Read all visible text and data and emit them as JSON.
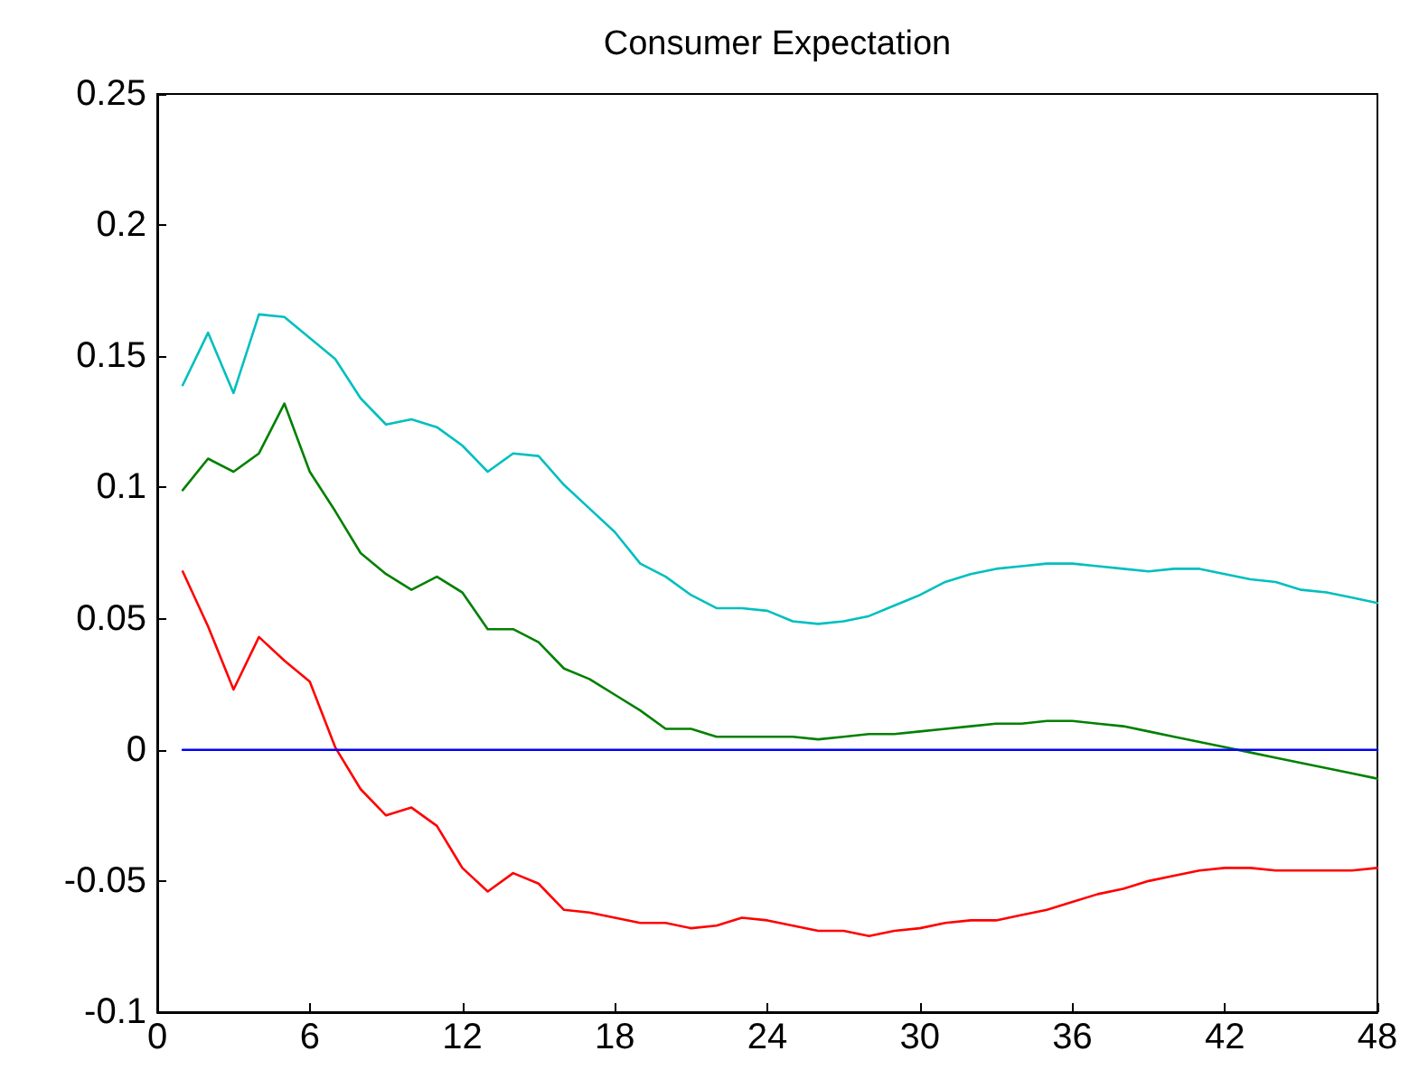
{
  "chart_data": {
    "type": "line",
    "title": "Consumer Expectation",
    "x": [
      1,
      2,
      3,
      4,
      5,
      6,
      7,
      8,
      9,
      10,
      11,
      12,
      13,
      14,
      15,
      16,
      17,
      18,
      19,
      20,
      21,
      22,
      23,
      24,
      25,
      26,
      27,
      28,
      29,
      30,
      31,
      32,
      33,
      34,
      35,
      36,
      37,
      38,
      39,
      40,
      41,
      42,
      43,
      44,
      45,
      46,
      47,
      48
    ],
    "xlim": [
      0,
      48
    ],
    "xticks": [
      0,
      6,
      12,
      18,
      24,
      30,
      36,
      42,
      48
    ],
    "ylim": [
      -0.1,
      0.25
    ],
    "yticks": [
      -0.1,
      -0.05,
      0,
      0.05,
      0.1,
      0.15,
      0.2,
      0.25
    ],
    "grid": false,
    "marker": "none",
    "line_style": "solid",
    "series": [
      {
        "color": "#00bfbf",
        "values": [
          0.139,
          0.159,
          0.136,
          0.166,
          0.165,
          0.157,
          0.149,
          0.134,
          0.124,
          0.126,
          0.123,
          0.116,
          0.106,
          0.113,
          0.112,
          0.101,
          0.092,
          0.083,
          0.071,
          0.066,
          0.059,
          0.054,
          0.054,
          0.053,
          0.049,
          0.048,
          0.049,
          0.051,
          0.055,
          0.059,
          0.064,
          0.067,
          0.069,
          0.07,
          0.071,
          0.071,
          0.07,
          0.069,
          0.068,
          0.069,
          0.069,
          0.067,
          0.065,
          0.064,
          0.061,
          0.06,
          0.058,
          0.056
        ]
      },
      {
        "color": "#008000",
        "values": [
          0.099,
          0.111,
          0.106,
          0.113,
          0.132,
          0.106,
          0.091,
          0.075,
          0.067,
          0.061,
          0.066,
          0.06,
          0.046,
          0.046,
          0.041,
          0.031,
          0.027,
          0.021,
          0.015,
          0.008,
          0.008,
          0.005,
          0.005,
          0.005,
          0.005,
          0.004,
          0.005,
          0.006,
          0.006,
          0.007,
          0.008,
          0.009,
          0.01,
          0.01,
          0.011,
          0.011,
          0.01,
          0.009,
          0.007,
          0.005,
          0.003,
          0.001,
          -0.001,
          -0.003,
          -0.005,
          -0.007,
          -0.009,
          -0.011
        ]
      },
      {
        "color": "#ff0000",
        "values": [
          0.068,
          0.047,
          0.023,
          0.043,
          0.034,
          0.026,
          0.001,
          -0.015,
          -0.025,
          -0.022,
          -0.029,
          -0.045,
          -0.054,
          -0.047,
          -0.051,
          -0.061,
          -0.062,
          -0.064,
          -0.066,
          -0.066,
          -0.068,
          -0.067,
          -0.064,
          -0.065,
          -0.067,
          -0.069,
          -0.069,
          -0.071,
          -0.069,
          -0.068,
          -0.066,
          -0.065,
          -0.065,
          -0.063,
          -0.061,
          -0.058,
          -0.055,
          -0.053,
          -0.05,
          -0.048,
          -0.046,
          -0.045,
          -0.045,
          -0.046,
          -0.046,
          -0.046,
          -0.046,
          -0.045
        ]
      },
      {
        "color": "#0000ff",
        "values": [
          0,
          0,
          0,
          0,
          0,
          0,
          0,
          0,
          0,
          0,
          0,
          0,
          0,
          0,
          0,
          0,
          0,
          0,
          0,
          0,
          0,
          0,
          0,
          0,
          0,
          0,
          0,
          0,
          0,
          0,
          0,
          0,
          0,
          0,
          0,
          0,
          0,
          0,
          0,
          0,
          0,
          0,
          0,
          0,
          0,
          0,
          0,
          0
        ]
      }
    ]
  }
}
